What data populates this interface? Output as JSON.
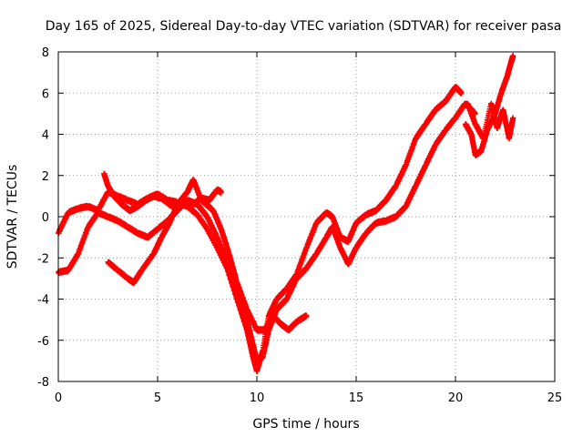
{
  "chart_data": {
    "type": "scatter",
    "title": "Day 165 of 2025, Sidereal Day-to-day VTEC variation (SDTVAR) for receiver pasa",
    "xlabel": "GPS time / hours",
    "ylabel": "SDTVAR / TECUs",
    "xlim": [
      0,
      25
    ],
    "ylim": [
      -8,
      8
    ],
    "xticks": [
      "0",
      "5",
      "10",
      "15",
      "20",
      "25"
    ],
    "yticks": [
      "-8",
      "-6",
      "-4",
      "-2",
      "0",
      "2",
      "4",
      "6",
      "8"
    ],
    "grid": true,
    "marker": "+",
    "color": "#ff0000",
    "series": [
      {
        "x": [
          0,
          0.5,
          1.0,
          1.5,
          2.0,
          2.5,
          3.0,
          3.5,
          4.0,
          4.5,
          5.0,
          5.5,
          6.0,
          6.5,
          7.0,
          7.5,
          8.0,
          8.5,
          9.0,
          9.5,
          9.8,
          10.0,
          10.3,
          10.6,
          11.0,
          11.5,
          12.0,
          12.5,
          13.0,
          13.5,
          13.8,
          14.2,
          14.6,
          15.0,
          15.5,
          16.0,
          16.5,
          17.0,
          17.5,
          18.0,
          18.5,
          19.0,
          19.5,
          20.0,
          20.3
        ],
        "y": [
          -0.8,
          0.2,
          0.4,
          0.5,
          0.3,
          1.2,
          1.0,
          0.8,
          0.6,
          0.9,
          1.1,
          0.8,
          0.7,
          0.5,
          0.1,
          -0.6,
          -1.5,
          -2.5,
          -4.0,
          -5.5,
          -6.8,
          -7.5,
          -6.5,
          -4.8,
          -4.0,
          -3.5,
          -2.8,
          -1.5,
          -0.3,
          0.2,
          0.0,
          -1.0,
          -1.2,
          -0.3,
          0.1,
          0.3,
          0.8,
          1.5,
          2.5,
          3.8,
          4.5,
          5.2,
          5.6,
          6.3,
          6.0
        ]
      },
      {
        "x": [
          0,
          0.5,
          1.0,
          1.5,
          2.0,
          2.5,
          3.0,
          3.5,
          4.0,
          4.5,
          5.0,
          5.5,
          6.0,
          6.5,
          7.0,
          7.5,
          8.0,
          8.5,
          9.0,
          9.5,
          9.8,
          10.0,
          10.3,
          10.6,
          11.0,
          11.5,
          12.0,
          12.5,
          13.0,
          13.5,
          13.8,
          14.2,
          14.6,
          15.0,
          15.5,
          16.0,
          16.5,
          17.0,
          17.5,
          18.0,
          18.5,
          19.0,
          19.5,
          20.0,
          20.5,
          21.0
        ],
        "y": [
          -2.7,
          -2.6,
          -1.8,
          -0.5,
          0.2,
          0.0,
          -0.2,
          -0.5,
          -0.8,
          -1.0,
          -0.6,
          -0.2,
          0.3,
          0.8,
          0.6,
          0.0,
          -1.0,
          -2.2,
          -3.5,
          -5.0,
          -6.2,
          -7.0,
          -6.8,
          -5.5,
          -4.5,
          -4.0,
          -3.0,
          -2.5,
          -1.8,
          -1.0,
          -0.5,
          -1.5,
          -2.3,
          -1.5,
          -0.8,
          -0.3,
          -0.2,
          0.0,
          0.5,
          1.5,
          2.5,
          3.5,
          4.2,
          4.8,
          5.5,
          5.0
        ]
      },
      {
        "x": [
          2.5,
          3.0,
          3.5,
          3.8,
          4.2,
          4.8,
          5.2,
          5.6,
          6.0,
          6.5,
          6.8,
          7.2,
          7.8,
          8.2,
          8.6,
          9.0,
          9.5,
          10.0,
          10.4,
          10.8,
          11.2,
          11.6,
          12.0,
          12.5
        ],
        "y": [
          -2.2,
          -2.6,
          -3.0,
          -3.2,
          -2.6,
          -1.8,
          -1.0,
          -0.3,
          0.6,
          1.2,
          1.8,
          0.8,
          0.3,
          -0.6,
          -1.8,
          -3.2,
          -4.5,
          -5.5,
          -5.5,
          -4.8,
          -5.2,
          -5.5,
          -5.1,
          -4.8
        ]
      },
      {
        "x": [
          2.3,
          2.5,
          2.8,
          3.2,
          3.6,
          4.0,
          4.4,
          4.8,
          5.2,
          5.6,
          6.0,
          6.4,
          6.8,
          7.2,
          7.6,
          8.0,
          8.2
        ],
        "y": [
          2.1,
          1.5,
          1.0,
          0.6,
          0.3,
          0.5,
          0.8,
          1.0,
          0.9,
          0.6,
          0.4,
          0.7,
          0.6,
          0.9,
          0.8,
          1.3,
          1.2
        ]
      },
      {
        "x": [
          20.5,
          20.8,
          21.0,
          21.3,
          21.6,
          22.0,
          22.3,
          22.6,
          22.8,
          22.9
        ],
        "y": [
          4.5,
          4.0,
          3.0,
          3.2,
          4.2,
          5.0,
          6.0,
          6.8,
          7.5,
          7.8
        ]
      },
      {
        "x": [
          20.6,
          21.0,
          21.4,
          21.8,
          22.1,
          22.4,
          22.7,
          22.9
        ],
        "y": [
          5.5,
          4.5,
          3.8,
          5.5,
          4.3,
          5.2,
          3.8,
          4.8
        ]
      }
    ]
  }
}
